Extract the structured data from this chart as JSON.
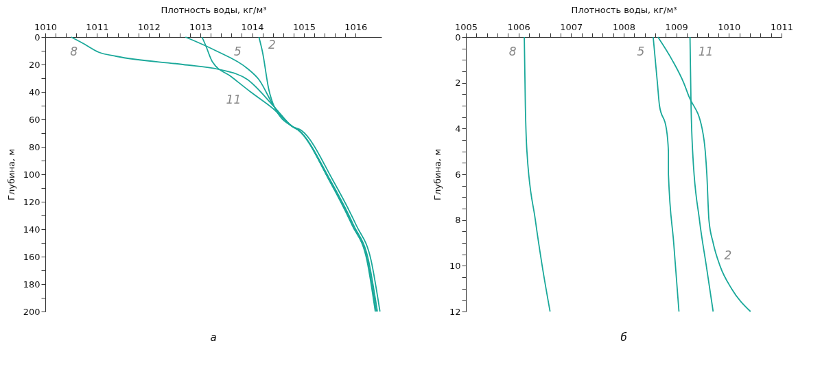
{
  "chart_data": [
    {
      "type": "line",
      "title": "а",
      "xlabel": "Плотность воды, кг/м³",
      "ylabel": "Глубина, м",
      "xlim": [
        1010,
        1016.5
      ],
      "ylim": [
        200,
        0
      ],
      "grid": false,
      "line_style": "solid",
      "marker": "none",
      "xticks": [
        1010,
        {
          "value": 1010.2,
          "label": null
        },
        {
          "value": 1010.4,
          "label": null
        },
        {
          "value": 1010.6,
          "label": null
        },
        {
          "value": 1010.8,
          "label": null
        },
        1011,
        {
          "value": 1011.2,
          "label": null
        },
        {
          "value": 1011.4,
          "label": null
        },
        {
          "value": 1011.6,
          "label": null
        },
        {
          "value": 1011.8,
          "label": null
        },
        1012,
        {
          "value": 1012.2,
          "label": null
        },
        {
          "value": 1012.4,
          "label": null
        },
        {
          "value": 1012.6,
          "label": null
        },
        {
          "value": 1012.8,
          "label": null
        },
        1013,
        {
          "value": 1013.2,
          "label": null
        },
        {
          "value": 1013.4,
          "label": null
        },
        {
          "value": 1013.6,
          "label": null
        },
        {
          "value": 1013.8,
          "label": null
        },
        1014,
        {
          "value": 1014.2,
          "label": null
        },
        {
          "value": 1014.4,
          "label": null
        },
        {
          "value": 1014.6,
          "label": null
        },
        {
          "value": 1014.8,
          "label": null
        },
        1015,
        {
          "value": 1015.2,
          "label": null
        },
        {
          "value": 1015.4,
          "label": null
        },
        {
          "value": 1015.6,
          "label": null
        },
        {
          "value": 1015.8,
          "label": null
        },
        1016
      ],
      "yticks": [
        0,
        {
          "value": 10,
          "label": null
        },
        20,
        {
          "value": 30,
          "label": null
        },
        40,
        {
          "value": 50,
          "label": null
        },
        60,
        {
          "value": 70,
          "label": null
        },
        80,
        {
          "value": 90,
          "label": null
        },
        100,
        {
          "value": 110,
          "label": null
        },
        120,
        {
          "value": 130,
          "label": null
        },
        140,
        {
          "value": 150,
          "label": null
        },
        160,
        {
          "value": 170,
          "label": null
        },
        180,
        {
          "value": 190,
          "label": null
        },
        200
      ],
      "series": [
        {
          "name": "8",
          "color": "#1aa89a",
          "x": [
            1010.5,
            1010.75,
            1011.03,
            1011.37,
            1012.66,
            1013.35,
            1013.91,
            1014.43,
            1014.77,
            1014.9,
            1015.5,
            1015.94,
            1016.23,
            1016.4
          ],
          "values": [
            0,
            5,
            11,
            14,
            20,
            23.5,
            31,
            51,
            65,
            68,
            105,
            137,
            163,
            200
          ]
        },
        {
          "name": "5",
          "color": "#1aa89a",
          "x": [
            1012.71,
            1013.3,
            1013.91,
            1014.13,
            1014.43,
            1014.77,
            1014.9,
            1015.52,
            1015.96,
            1016.25,
            1016.42
          ],
          "values": [
            0,
            10,
            23,
            31,
            51,
            65,
            68,
            105,
            137,
            163,
            200
          ]
        },
        {
          "name": "2",
          "color": "#1aa89a",
          "x": [
            1014.13,
            1014.2,
            1014.32,
            1014.43,
            1014.77,
            1014.95,
            1015.57,
            1016.01,
            1016.3,
            1016.47
          ],
          "values": [
            0,
            11,
            38,
            51,
            65,
            68,
            105,
            137,
            163,
            200
          ]
        },
        {
          "name": "11",
          "color": "#1aa89a",
          "x": [
            1013.03,
            1013.1,
            1013.23,
            1013.6,
            1013.97,
            1014.4,
            1014.77,
            1014.9,
            1015.5,
            1015.93,
            1016.22,
            1016.38
          ],
          "values": [
            0,
            6,
            18,
            29,
            40,
            52,
            65,
            68,
            105,
            137,
            163,
            200
          ]
        }
      ]
    },
    {
      "type": "line",
      "title": "б",
      "xlabel": "Плотность воды, кг/м³",
      "ylabel": "Глубина, м",
      "xlim": [
        1005,
        1011
      ],
      "ylim": [
        12,
        0
      ],
      "grid": false,
      "line_style": "solid",
      "marker": "none",
      "xticks": [
        1005,
        {
          "value": 1005.2,
          "label": null
        },
        {
          "value": 1005.4,
          "label": null
        },
        {
          "value": 1005.6,
          "label": null
        },
        {
          "value": 1005.8,
          "label": null
        },
        1006,
        {
          "value": 1006.2,
          "label": null
        },
        {
          "value": 1006.4,
          "label": null
        },
        {
          "value": 1006.6,
          "label": null
        },
        {
          "value": 1006.8,
          "label": null
        },
        1007,
        {
          "value": 1007.2,
          "label": null
        },
        {
          "value": 1007.4,
          "label": null
        },
        {
          "value": 1007.6,
          "label": null
        },
        {
          "value": 1007.8,
          "label": null
        },
        1008,
        {
          "value": 1008.2,
          "label": null
        },
        {
          "value": 1008.4,
          "label": null
        },
        {
          "value": 1008.6,
          "label": null
        },
        {
          "value": 1008.8,
          "label": null
        },
        1009,
        {
          "value": 1009.2,
          "label": null
        },
        {
          "value": 1009.4,
          "label": null
        },
        {
          "value": 1009.6,
          "label": null
        },
        {
          "value": 1009.8,
          "label": null
        },
        1010,
        {
          "value": 1010.2,
          "label": null
        },
        {
          "value": 1010.4,
          "label": null
        },
        {
          "value": 1010.6,
          "label": null
        },
        {
          "value": 1010.8,
          "label": null
        },
        1011
      ],
      "yticks": [
        0,
        {
          "value": 0.5,
          "label": null
        },
        {
          "value": 1,
          "label": null
        },
        {
          "value": 1.5,
          "label": null
        },
        2,
        {
          "value": 2.5,
          "label": null
        },
        {
          "value": 3,
          "label": null
        },
        {
          "value": 3.5,
          "label": null
        },
        4,
        {
          "value": 4.5,
          "label": null
        },
        {
          "value": 5,
          "label": null
        },
        {
          "value": 5.5,
          "label": null
        },
        6,
        {
          "value": 6.5,
          "label": null
        },
        {
          "value": 7,
          "label": null
        },
        {
          "value": 7.5,
          "label": null
        },
        8,
        {
          "value": 8.5,
          "label": null
        },
        {
          "value": 9,
          "label": null
        },
        {
          "value": 9.5,
          "label": null
        },
        10,
        {
          "value": 10.5,
          "label": null
        },
        {
          "value": 11,
          "label": null
        },
        {
          "value": 11.5,
          "label": null
        },
        12
      ],
      "series": [
        {
          "name": "8",
          "color": "#1aa89a",
          "x": [
            1006.11,
            1006.13,
            1006.16,
            1006.32,
            1006.45,
            1006.6
          ],
          "values": [
            0,
            3,
            5,
            8,
            10,
            12
          ]
        },
        {
          "name": "5",
          "color": "#1aa89a",
          "x": [
            1008.56,
            1008.64,
            1008.68,
            1008.81,
            1008.85,
            1008.85,
            1008.95,
            1009.05
          ],
          "values": [
            0,
            2,
            3,
            4,
            5,
            6,
            9,
            12
          ]
        },
        {
          "name": "11",
          "color": "#1aa89a",
          "x": [
            1009.26,
            1009.28,
            1009.31,
            1009.44,
            1009.57,
            1009.7
          ],
          "values": [
            0,
            3,
            5,
            8,
            10,
            12
          ]
        },
        {
          "name": "2",
          "color": "#1aa89a",
          "x": [
            1008.65,
            1008.92,
            1009.14,
            1009.24,
            1009.49,
            1009.55,
            1009.58,
            1009.62,
            1009.7,
            1009.83,
            1010.05,
            1010.41
          ],
          "values": [
            0,
            1,
            2,
            2.6,
            4,
            5,
            6,
            8,
            9,
            10,
            11,
            12
          ]
        }
      ]
    }
  ]
}
